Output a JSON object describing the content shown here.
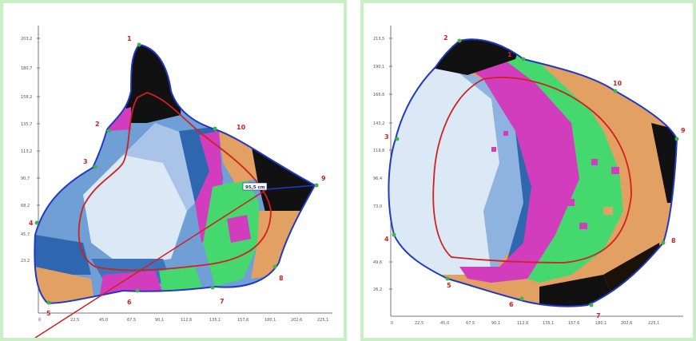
{
  "left_map": {
    "y_ticks": [
      "203,2",
      "180,7",
      "158,2",
      "135,7",
      "113,2",
      "90,7",
      "68,2",
      "45,7",
      "23,2"
    ],
    "x_ticks": [
      "0",
      "22,5",
      "45,0",
      "67,5",
      "90,1",
      "112,6",
      "135,1",
      "157,6",
      "180,1",
      "202,6",
      "225,1"
    ],
    "point_labels": [
      "1",
      "2",
      "3",
      "4",
      "5",
      "6",
      "7",
      "8",
      "9",
      "10"
    ],
    "measurement": "95,5 cm"
  },
  "right_map": {
    "y_ticks": [
      "213,5",
      "190,1",
      "166,6",
      "143,2",
      "119,8",
      "96,4",
      "73,0",
      "49,6",
      "26,2"
    ],
    "x_ticks": [
      "0",
      "22,5",
      "45,0",
      "67,5",
      "90,1",
      "112,6",
      "135,1",
      "157,6",
      "180,1",
      "202,6",
      "225,1"
    ],
    "point_labels": [
      "1",
      "2",
      "3",
      "4",
      "5",
      "6",
      "7",
      "8",
      "9",
      "10"
    ]
  },
  "colors": {
    "border": "#c9f0c4",
    "outline": "#2038c8",
    "contour": "#d02020",
    "light_blue": "#dbe8f6",
    "mid_blue": "#6f9fd4",
    "dark_blue": "#2f66b0",
    "magenta": "#d23dbd",
    "green": "#45d86e",
    "orange": "#e3a063",
    "black": "#111111",
    "label": "#d42020"
  }
}
